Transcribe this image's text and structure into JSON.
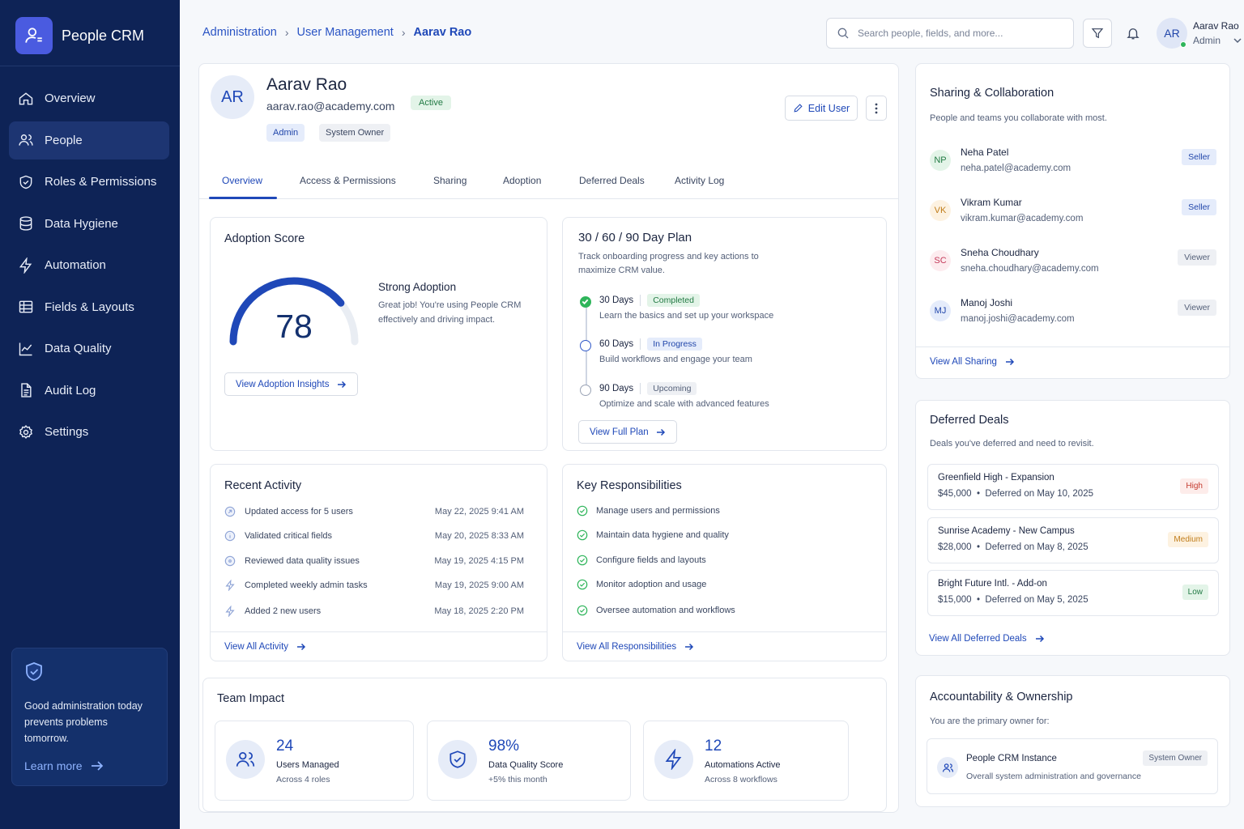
{
  "brand": {
    "name": "People CRM"
  },
  "nav": [
    {
      "label": "Overview",
      "icon": "home-icon"
    },
    {
      "label": "People",
      "icon": "users-icon",
      "active": true
    },
    {
      "label": "Roles & Permissions",
      "icon": "shield-icon"
    },
    {
      "label": "Data Hygiene",
      "icon": "database-icon"
    },
    {
      "label": "Automation",
      "icon": "lightning-icon"
    },
    {
      "label": "Fields & Layouts",
      "icon": "grid-icon"
    },
    {
      "label": "Data Quality",
      "icon": "chart-line-icon"
    },
    {
      "label": "Audit Log",
      "icon": "document-icon"
    },
    {
      "label": "Settings",
      "icon": "gear-icon"
    }
  ],
  "promo": {
    "text": "Good administration today prevents problems tomorrow.",
    "link": "Learn more"
  },
  "breadcrumb": [
    "Administration",
    "User Management",
    "Aarav Rao"
  ],
  "search": {
    "placeholder": "Search people, fields, and more..."
  },
  "current_user": {
    "initials": "AR",
    "name": "Aarav Rao",
    "role": "Admin"
  },
  "profile": {
    "initials": "AR",
    "name": "Aarav Rao",
    "email": "aarav.rao@academy.com",
    "status": "Active",
    "tags": [
      "Admin",
      "System Owner"
    ],
    "edit_label": "Edit User"
  },
  "tabs": [
    "Overview",
    "Access & Permissions",
    "Sharing",
    "Adoption",
    "Deferred Deals",
    "Activity Log"
  ],
  "adoption": {
    "title": "Adoption Score",
    "score": "78",
    "score_fraction": 0.78,
    "headline": "Strong Adoption",
    "description": "Great job! You're using People CRM effectively and driving impact.",
    "button": "View Adoption Insights"
  },
  "plan": {
    "title": "30 / 60 / 90 Day Plan",
    "description": "Track onboarding progress and key actions to maximize CRM value.",
    "steps": [
      {
        "label": "30 Days",
        "status": "Completed",
        "text": "Learn the basics and set up your workspace"
      },
      {
        "label": "60 Days",
        "status": "In Progress",
        "text": "Build workflows and engage your team"
      },
      {
        "label": "90 Days",
        "status": "Upcoming",
        "text": "Optimize and scale with advanced features"
      }
    ],
    "button": "View Full Plan"
  },
  "activity": {
    "title": "Recent Activity",
    "items": [
      {
        "text": "Updated access for 5 users",
        "time": "May 22, 2025 9:41 AM"
      },
      {
        "text": "Validated critical fields",
        "time": "May 20, 2025 8:33 AM"
      },
      {
        "text": "Reviewed data quality issues",
        "time": "May 19, 2025 4:15 PM"
      },
      {
        "text": "Completed weekly admin tasks",
        "time": "May 19, 2025 9:00 AM"
      },
      {
        "text": "Added 2 new users",
        "time": "May 18, 2025 2:20 PM"
      }
    ],
    "link": "View All Activity"
  },
  "responsibilities": {
    "title": "Key Responsibilities",
    "items": [
      "Manage users and permissions",
      "Maintain data hygiene and quality",
      "Configure fields and layouts",
      "Monitor adoption and usage",
      "Oversee automation and workflows"
    ],
    "link": "View All Responsibilities"
  },
  "impact": {
    "title": "Team Impact",
    "items": [
      {
        "value": "24",
        "label": "Users Managed",
        "sub": "Across 4 roles",
        "icon": "users-icon"
      },
      {
        "value": "98%",
        "label": "Data Quality Score",
        "sub": "+5% this month",
        "icon": "shield-check-icon"
      },
      {
        "value": "12",
        "label": "Automations Active",
        "sub": "Across 8 workflows",
        "icon": "lightning-icon"
      }
    ]
  },
  "sharing": {
    "title": "Sharing & Collaboration",
    "description": "People and teams you collaborate with most.",
    "people": [
      {
        "initials": "NP",
        "name": "Neha Patel",
        "email": "neha.patel@academy.com",
        "role": "Seller"
      },
      {
        "initials": "VK",
        "name": "Vikram Kumar",
        "email": "vikram.kumar@academy.com",
        "role": "Seller"
      },
      {
        "initials": "SC",
        "name": "Sneha Choudhary",
        "email": "sneha.choudhary@academy.com",
        "role": "Viewer"
      },
      {
        "initials": "MJ",
        "name": "Manoj Joshi",
        "email": "manoj.joshi@academy.com",
        "role": "Viewer"
      }
    ],
    "link": "View All Sharing"
  },
  "deferred": {
    "title": "Deferred Deals",
    "description": "Deals you've deferred and need to revisit.",
    "deals": [
      {
        "name": "Greenfield High - Expansion",
        "amount": "$45,000",
        "deferred": "Deferred on May 10, 2025",
        "priority": "High"
      },
      {
        "name": "Sunrise Academy - New Campus",
        "amount": "$28,000",
        "deferred": "Deferred on May 8, 2025",
        "priority": "Medium"
      },
      {
        "name": "Bright Future Intl. - Add-on",
        "amount": "$15,000",
        "deferred": "Deferred on May 5, 2025",
        "priority": "Low"
      }
    ],
    "link": "View All Deferred Deals"
  },
  "accountability": {
    "title": "Accountability & Ownership",
    "description": "You are the primary owner for:",
    "item": {
      "name": "People CRM Instance",
      "description": "Overall system administration and governance",
      "tag": "System Owner"
    }
  },
  "colors": {
    "sidebar": "#0e2356",
    "accent": "#1f48b8",
    "success": "#2fb55b"
  }
}
